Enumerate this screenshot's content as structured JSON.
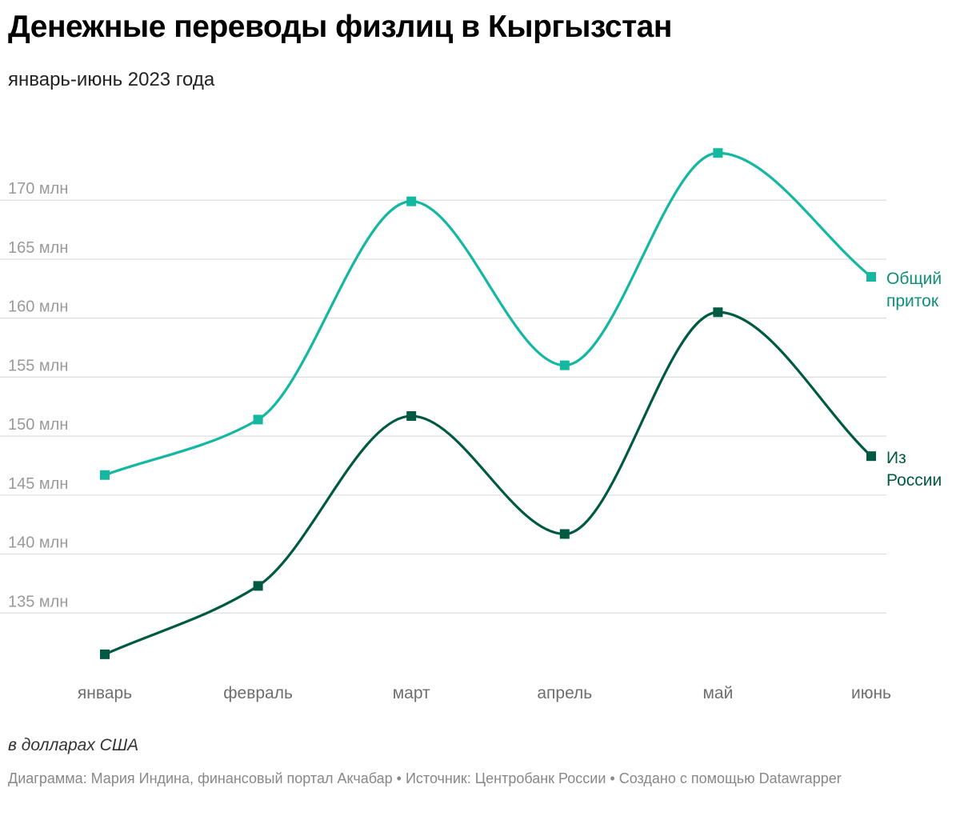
{
  "title": "Денежные переводы физлиц в Кыргызстан",
  "subtitle": "январь-июнь 2023 года",
  "notes": "в долларах США",
  "byline": "Диаграмма: Мария Индина, финансовый портал Акчабар • Источник: Центробанк России • Создано с помощью Datawrapper",
  "colors": {
    "total": "#14b8a0",
    "russia": "#005a43",
    "total_label": "#0e8f78",
    "russia_label": "#005a43",
    "grid": "#dddddd"
  },
  "chart_data": {
    "type": "line",
    "categories": [
      "январь",
      "февраль",
      "март",
      "апрель",
      "май",
      "июнь"
    ],
    "series": [
      {
        "name": "Общий приток",
        "label_lines": [
          "Общий",
          "приток"
        ],
        "color_key": "total",
        "values": [
          146.7,
          151.4,
          169.9,
          156.0,
          174.0,
          163.5
        ]
      },
      {
        "name": "Из России",
        "label_lines": [
          "Из",
          "России"
        ],
        "color_key": "russia",
        "values": [
          131.5,
          137.3,
          151.7,
          141.7,
          160.5,
          148.3
        ]
      }
    ],
    "y_ticks": [
      135,
      140,
      145,
      150,
      155,
      160,
      165,
      170
    ],
    "y_tick_labels": [
      "135 млн",
      "140 млн",
      "145 млн",
      "150 млн",
      "155 млн",
      "160 млн",
      "165 млн",
      "170 млн"
    ],
    "ylim": [
      130,
      177
    ],
    "xlabel": "",
    "ylabel": "",
    "grid": true,
    "curve": "smooth",
    "marker": "square",
    "legend": "inline-right"
  }
}
